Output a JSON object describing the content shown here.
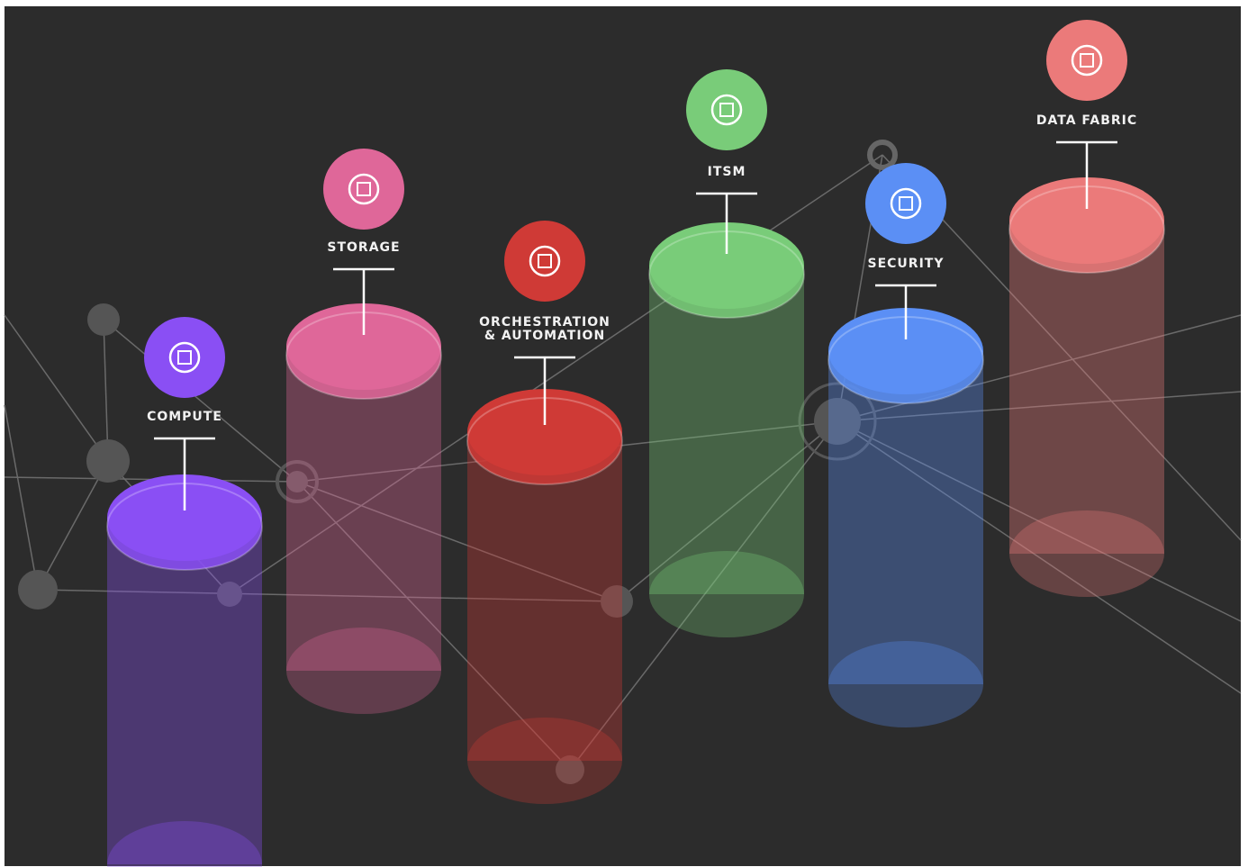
{
  "nodes": [
    {
      "label_lines": [
        "COMPUTE"
      ]
    },
    {
      "label_lines": [
        "STORAGE"
      ]
    },
    {
      "label_lines": [
        "ORCHESTRATION",
        "& AUTOMATION"
      ]
    },
    {
      "label_lines": [
        "ITSM"
      ]
    },
    {
      "label_lines": [
        "SECURITY"
      ]
    },
    {
      "label_lines": [
        "DATA FABRIC"
      ]
    }
  ]
}
